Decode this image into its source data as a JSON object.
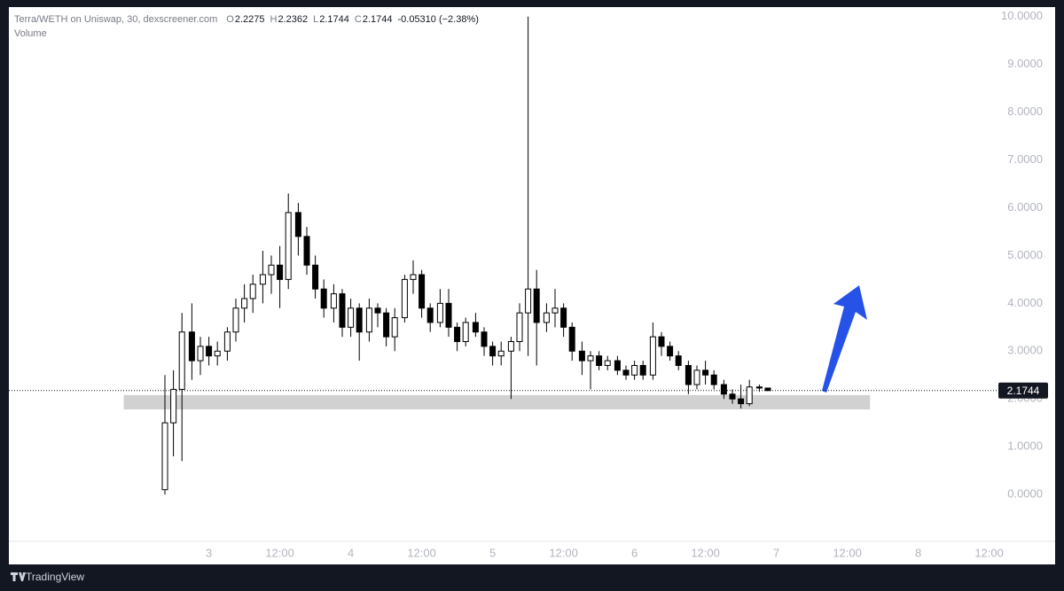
{
  "chart_data": {
    "type": "candlestick",
    "symbol": "Terra/WETH on Uniswap, 30, dexscreener.com",
    "ohlc_legend": [
      {
        "label": "O",
        "value": 2.2275
      },
      {
        "label": "H",
        "value": 2.2362
      },
      {
        "label": "L",
        "value": 2.1744
      },
      {
        "label": "C",
        "value": 2.1744
      }
    ],
    "change": "-0.05310 (−2.38%)",
    "volume_label": "Volume",
    "footer": "TradingView",
    "up_color": "#ffffff",
    "down_color": "#000000",
    "wick_color": "#000000",
    "x": [
      2.69,
      2.75,
      2.81,
      2.88,
      2.94,
      3.0,
      3.06,
      3.13,
      3.19,
      3.25,
      3.31,
      3.38,
      3.44,
      3.5,
      3.56,
      3.63,
      3.69,
      3.75,
      3.81,
      3.88,
      3.94,
      4.0,
      4.06,
      4.13,
      4.19,
      4.25,
      4.31,
      4.38,
      4.44,
      4.5,
      4.56,
      4.63,
      4.69,
      4.75,
      4.81,
      4.88,
      4.94,
      5.0,
      5.06,
      5.13,
      5.19,
      5.25,
      5.31,
      5.38,
      5.44,
      5.5,
      5.56,
      5.63,
      5.69,
      5.75,
      5.81,
      5.88,
      5.94,
      6.0,
      6.06,
      6.13,
      6.19,
      6.25,
      6.31,
      6.38,
      6.44,
      6.5,
      6.56,
      6.63,
      6.69,
      6.75,
      6.81,
      6.88,
      6.94
    ],
    "open": [
      0.1,
      1.5,
      2.2,
      3.4,
      2.8,
      3.1,
      2.9,
      3.0,
      3.4,
      3.9,
      4.1,
      4.4,
      4.6,
      4.8,
      4.5,
      5.9,
      5.4,
      4.8,
      4.3,
      3.9,
      4.2,
      3.5,
      3.9,
      3.4,
      3.9,
      3.8,
      3.3,
      3.7,
      4.5,
      4.6,
      3.9,
      3.6,
      4.0,
      3.5,
      3.2,
      3.6,
      3.4,
      3.1,
      2.9,
      3.0,
      3.2,
      3.8,
      4.3,
      3.6,
      3.8,
      3.9,
      3.5,
      3.0,
      2.8,
      2.9,
      2.7,
      2.8,
      2.6,
      2.5,
      2.7,
      2.5,
      3.3,
      3.1,
      2.9,
      2.7,
      2.3,
      2.6,
      2.5,
      2.3,
      2.1,
      2.0,
      1.9,
      2.25,
      2.2275
    ],
    "high": [
      2.5,
      2.6,
      3.8,
      4.0,
      3.3,
      3.3,
      3.2,
      3.5,
      4.1,
      4.4,
      4.6,
      5.1,
      5.0,
      5.2,
      6.3,
      6.1,
      5.6,
      5.0,
      4.5,
      4.4,
      4.3,
      4.1,
      4.0,
      4.1,
      4.0,
      3.9,
      3.9,
      4.6,
      4.9,
      4.7,
      4.0,
      4.3,
      4.3,
      3.6,
      3.7,
      3.8,
      3.5,
      3.2,
      3.2,
      3.3,
      4.0,
      10.0,
      4.7,
      4.0,
      4.3,
      4.0,
      3.6,
      3.2,
      3.0,
      3.0,
      2.9,
      2.9,
      2.7,
      2.8,
      2.8,
      3.6,
      3.4,
      3.2,
      3.0,
      2.8,
      2.7,
      2.8,
      2.6,
      2.4,
      2.2,
      2.3,
      2.4,
      2.3,
      2.2362
    ],
    "low": [
      0.0,
      0.8,
      0.7,
      2.4,
      2.5,
      2.7,
      2.7,
      2.8,
      3.2,
      3.6,
      3.8,
      4.0,
      4.2,
      3.9,
      4.3,
      5.0,
      4.6,
      4.1,
      3.7,
      3.6,
      3.3,
      3.3,
      2.8,
      3.2,
      3.5,
      3.1,
      3.0,
      3.6,
      4.2,
      3.7,
      3.4,
      3.5,
      3.3,
      3.0,
      3.1,
      3.3,
      2.9,
      2.7,
      2.7,
      2.0,
      3.0,
      2.9,
      2.7,
      3.4,
      3.5,
      3.3,
      2.8,
      2.5,
      2.2,
      2.6,
      2.6,
      2.5,
      2.4,
      2.4,
      2.4,
      2.4,
      2.9,
      2.8,
      2.6,
      2.1,
      2.2,
      2.3,
      2.2,
      2.0,
      1.9,
      1.8,
      1.85,
      2.15,
      2.1744
    ],
    "close": [
      1.5,
      2.2,
      3.4,
      2.8,
      3.1,
      2.9,
      3.0,
      3.4,
      3.9,
      4.1,
      4.4,
      4.6,
      4.8,
      4.5,
      5.9,
      5.4,
      4.8,
      4.3,
      3.9,
      4.2,
      3.5,
      3.9,
      3.4,
      3.9,
      3.8,
      3.3,
      3.7,
      4.5,
      4.6,
      3.9,
      3.6,
      4.0,
      3.5,
      3.2,
      3.6,
      3.4,
      3.1,
      2.9,
      3.0,
      3.2,
      3.8,
      4.3,
      3.6,
      3.8,
      3.9,
      3.5,
      3.0,
      2.8,
      2.9,
      2.7,
      2.8,
      2.6,
      2.5,
      2.7,
      2.5,
      3.3,
      3.1,
      2.9,
      2.7,
      2.3,
      2.6,
      2.5,
      2.3,
      2.1,
      2.0,
      1.9,
      2.25,
      2.2275,
      2.1744
    ],
    "last_price": 2.1744,
    "support_zone": {
      "x": [
        2.4,
        7.66
      ],
      "y": [
        1.78,
        2.08
      ]
    },
    "xlim": [
      1.59,
      8.59
    ],
    "xticks": [
      3,
      {
        "value": 3.5,
        "label": "12:00"
      },
      4,
      {
        "value": 4.5,
        "label": "12:00"
      },
      5,
      {
        "value": 5.5,
        "label": "12:00"
      },
      6,
      {
        "value": 6.5,
        "label": "12:00"
      },
      7,
      {
        "value": 7.5,
        "label": "12:00"
      },
      8,
      {
        "value": 8.5,
        "label": "12:00"
      }
    ],
    "ylim": [
      -1,
      10.2
    ],
    "yticks": [
      {
        "value": 0,
        "label": "0.0000"
      },
      {
        "value": 1,
        "label": "1.0000"
      },
      {
        "value": 2,
        "label": "2.0000"
      },
      {
        "value": 3,
        "label": "3.0000"
      },
      {
        "value": 4,
        "label": "4.0000"
      },
      {
        "value": 5,
        "label": "5.0000"
      },
      {
        "value": 6,
        "label": "6.0000"
      },
      {
        "value": 7,
        "label": "7.0000"
      },
      {
        "value": 8,
        "label": "8.0000"
      },
      {
        "value": 9,
        "label": "9.0000"
      },
      {
        "value": 10,
        "label": "10.0000"
      }
    ]
  }
}
